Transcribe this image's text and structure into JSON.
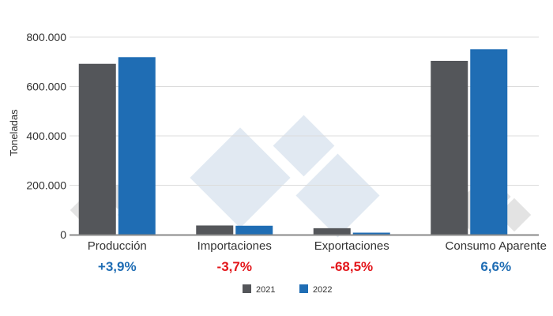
{
  "chart_data": {
    "type": "bar",
    "ylabel": "Toneladas",
    "ylim": [
      0,
      800000
    ],
    "yticks": [
      0,
      200000,
      400000,
      600000,
      800000
    ],
    "ytick_labels": [
      "0",
      "200.000",
      "400.000",
      "600.000",
      "800.000"
    ],
    "categories": [
      "Producción",
      "Importaciones",
      "Exportaciones",
      "Consumo Aparente"
    ],
    "series": [
      {
        "name": "2021",
        "color": "#54565a",
        "values": [
          692000,
          37000,
          26000,
          704000
        ]
      },
      {
        "name": "2022",
        "color": "#1f6db4",
        "values": [
          719000,
          36000,
          8000,
          751000
        ]
      }
    ],
    "annotations": [
      {
        "text": "+3,9%",
        "color": "#1f6db4"
      },
      {
        "text": "-3,7%",
        "color": "#e3161b"
      },
      {
        "text": "-68,5%",
        "color": "#e3161b"
      },
      {
        "text": "6,6%",
        "color": "#1f6db4"
      }
    ],
    "legend": "bottom-center",
    "grid": true
  }
}
